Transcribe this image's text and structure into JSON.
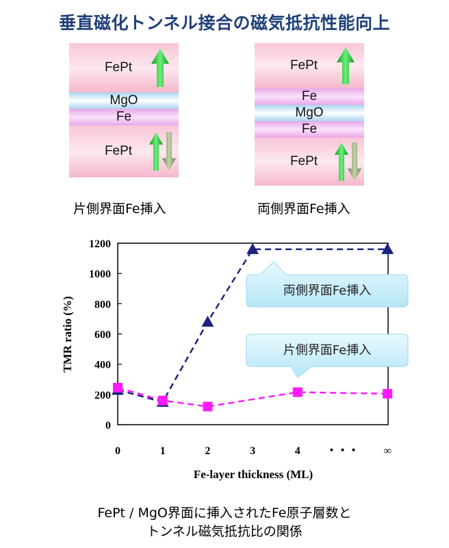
{
  "title": "垂直磁化トンネル接合の磁気抵抗性能向上",
  "diagram": {
    "left": {
      "caption": "片側界面Fe挿入",
      "layers": [
        "FePt",
        "MgO",
        "Fe",
        "FePt"
      ]
    },
    "right": {
      "caption": "両側界面Fe挿入",
      "layers": [
        "FePt",
        "Fe",
        "MgO",
        "Fe",
        "FePt"
      ]
    },
    "colors": {
      "arrow_free": "#22c02a",
      "arrow_fixed": "#8a9c72"
    }
  },
  "chart_data": {
    "type": "line",
    "xlabel": "Fe-layer thickness (ML)",
    "ylabel": "TMR ratio (%)",
    "ylim": [
      0,
      1200
    ],
    "yticks": [
      "0",
      "200",
      "400",
      "600",
      "800",
      "1000",
      "1200"
    ],
    "xticks": [
      "0",
      "1",
      "2",
      "3",
      "4",
      "・・・",
      "∞"
    ],
    "x": [
      0,
      1,
      2,
      3,
      4,
      5,
      6
    ],
    "series": [
      {
        "name": "両側界面Fe挿入",
        "marker": "triangle",
        "color": "#1a237e",
        "values": [
          230,
          150,
          680,
          1160,
          null,
          null,
          1160
        ]
      },
      {
        "name": "片側界面Fe挿入",
        "marker": "square",
        "color": "#ff1aff",
        "values": [
          245,
          160,
          120,
          null,
          215,
          null,
          205
        ]
      }
    ]
  },
  "bottom_caption": {
    "line1": "FePt / MgO界面に挿入されたFe原子層数と",
    "line2": "トンネル磁気抵抗比の関係"
  }
}
